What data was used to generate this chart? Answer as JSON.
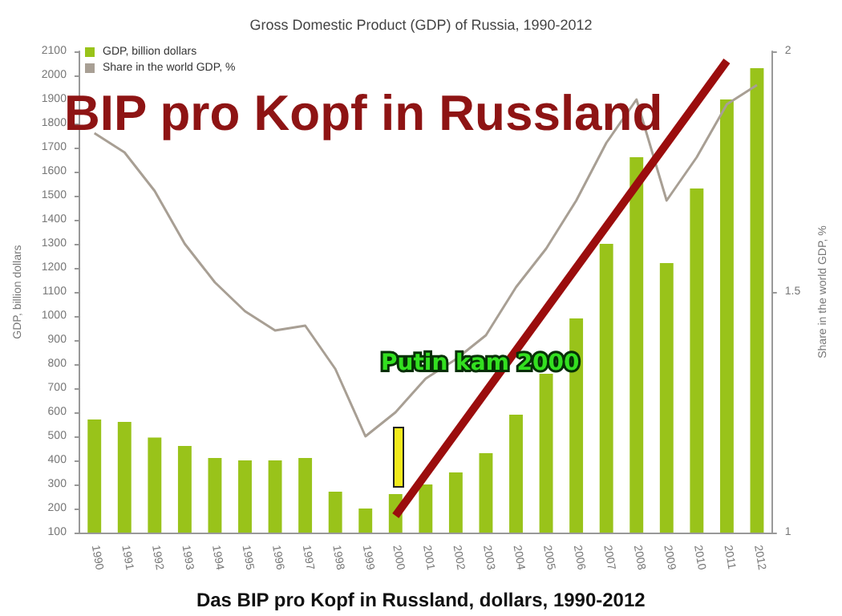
{
  "chart_data": {
    "type": "bar",
    "title": "Gross Domestic Product (GDP) of Russia, 1990-2012",
    "ylabel": "GDP, billion dollars",
    "y2label": "Share in the world GDP, %",
    "categories": [
      "1990",
      "1991",
      "1992",
      "1993",
      "1994",
      "1995",
      "1996",
      "1997",
      "1998",
      "1999",
      "2000",
      "2001",
      "2002",
      "2003",
      "2004",
      "2005",
      "2006",
      "2007",
      "2008",
      "2009",
      "2010",
      "2011",
      "2012"
    ],
    "series": [
      {
        "name": "GDP, billion dollars",
        "color": "#99c31a",
        "values": [
          570,
          560,
          495,
          460,
          410,
          400,
          400,
          410,
          270,
          200,
          260,
          300,
          350,
          430,
          590,
          760,
          990,
          1300,
          1660,
          1220,
          1530,
          1900,
          2030
        ]
      },
      {
        "name": "Share in the world GDP, %",
        "type": "line",
        "axis": "y2",
        "color": "#a89f94",
        "values": [
          1.83,
          1.79,
          1.71,
          1.6,
          1.52,
          1.46,
          1.42,
          1.43,
          1.34,
          1.2,
          1.25,
          1.32,
          1.36,
          1.41,
          1.51,
          1.59,
          1.69,
          1.81,
          1.9,
          1.69,
          1.78,
          1.89,
          1.93
        ]
      },
      {
        "type": "line",
        "color": "#9b0d0d",
        "values": [
          null,
          null,
          null,
          null,
          null,
          null,
          null,
          null,
          null,
          null,
          170,
          null,
          null,
          null,
          null,
          null,
          null,
          null,
          null,
          null,
          null,
          2060,
          null
        ]
      }
    ],
    "ylim": [
      100,
      2100
    ],
    "yticks": [
      100,
      200,
      300,
      400,
      500,
      600,
      700,
      800,
      900,
      1000,
      1100,
      1200,
      1300,
      1400,
      1500,
      1600,
      1700,
      1800,
      1900,
      2000,
      2100
    ],
    "y2lim": [
      1,
      2
    ],
    "y2ticks": [
      1,
      1.5,
      2
    ],
    "legend": "top left",
    "grid": false,
    "marker": "none",
    "annotations": [
      "BIP pro Kopf in Russland",
      "Putin kam 2000",
      "Das BIP pro Kopf in Russland, dollars, 1990-2012"
    ]
  }
}
